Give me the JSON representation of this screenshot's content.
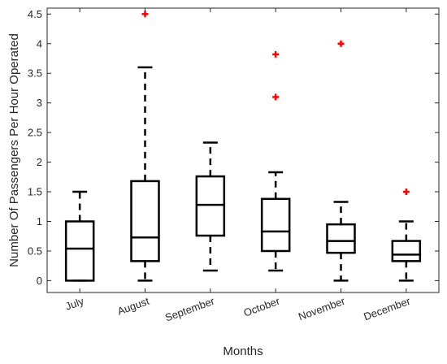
{
  "chart_data": {
    "type": "box",
    "title": "",
    "xlabel": "Months",
    "ylabel": "Number Of Passengers Per Hour Operated",
    "ylim": [
      -0.2,
      4.6
    ],
    "yticks": [
      "0",
      "0.5",
      "1",
      "1.5",
      "2",
      "2.5",
      "3",
      "3.5",
      "4",
      "4.5"
    ],
    "categories": [
      "July",
      "August",
      "September",
      "October",
      "November",
      "December"
    ],
    "boxes": [
      {
        "category": "July",
        "whisker_low": 0,
        "q1": 0,
        "median": 0.54,
        "q3": 1.0,
        "whisker_high": 1.5,
        "outliers": []
      },
      {
        "category": "August",
        "whisker_low": 0,
        "q1": 0.33,
        "median": 0.73,
        "q3": 1.68,
        "whisker_high": 3.6,
        "outliers": [
          4.5
        ]
      },
      {
        "category": "September",
        "whisker_low": 0.17,
        "q1": 0.76,
        "median": 1.28,
        "q3": 1.76,
        "whisker_high": 2.33,
        "outliers": []
      },
      {
        "category": "October",
        "whisker_low": 0.17,
        "q1": 0.5,
        "median": 0.83,
        "q3": 1.38,
        "whisker_high": 1.83,
        "outliers": [
          3.82,
          3.1
        ]
      },
      {
        "category": "November",
        "whisker_low": 0,
        "q1": 0.47,
        "median": 0.67,
        "q3": 0.95,
        "whisker_high": 1.33,
        "outliers": [
          4.0
        ]
      },
      {
        "category": "December",
        "whisker_low": 0,
        "q1": 0.33,
        "median": 0.44,
        "q3": 0.67,
        "whisker_high": 1.0,
        "outliers": [
          1.5
        ]
      }
    ],
    "grid": false,
    "legend": "none",
    "colors": {
      "box": "#000000",
      "outlier": "#ff0000",
      "axis": "#262626"
    }
  }
}
